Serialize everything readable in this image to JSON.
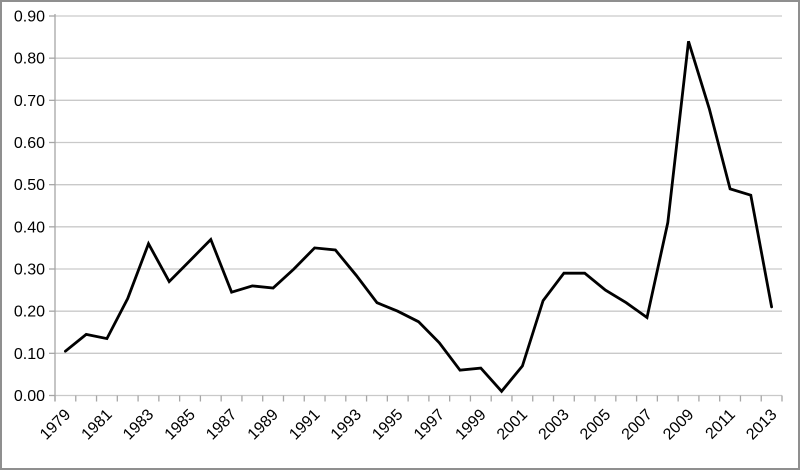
{
  "chart_data": {
    "type": "line",
    "title": "",
    "xlabel": "",
    "ylabel": "",
    "x": [
      1979,
      1980,
      1981,
      1982,
      1983,
      1984,
      1985,
      1986,
      1987,
      1988,
      1989,
      1990,
      1991,
      1992,
      1993,
      1994,
      1995,
      1996,
      1997,
      1998,
      1999,
      2000,
      2001,
      2002,
      2003,
      2004,
      2005,
      2006,
      2007,
      2008,
      2009,
      2010,
      2011,
      2012,
      2013
    ],
    "values": [
      0.105,
      0.145,
      0.135,
      0.23,
      0.36,
      0.27,
      0.32,
      0.37,
      0.245,
      0.26,
      0.255,
      0.3,
      0.35,
      0.345,
      0.285,
      0.22,
      0.2,
      0.175,
      0.125,
      0.06,
      0.065,
      0.01,
      0.07,
      0.225,
      0.29,
      0.29,
      0.25,
      0.22,
      0.185,
      0.41,
      0.84,
      0.68,
      0.49,
      0.475,
      0.21
    ],
    "ylim": [
      0,
      0.9
    ],
    "y_tick_step": 0.1,
    "y_tick_labels": [
      "0.00",
      "0.10",
      "0.20",
      "0.30",
      "0.40",
      "0.50",
      "0.60",
      "0.70",
      "0.80",
      "0.90"
    ],
    "x_tick_labels": [
      "1979",
      "1981",
      "1983",
      "1985",
      "1987",
      "1989",
      "1991",
      "1993",
      "1995",
      "1997",
      "1999",
      "2001",
      "2003",
      "2005",
      "2007",
      "2009",
      "2011",
      "2013"
    ],
    "x_label_every": 2,
    "grid": true,
    "legend": false,
    "colors": {
      "line": "#000000",
      "gridline": "#c9c9c9",
      "axis": "#a6a6a6",
      "tick": "#a6a6a6",
      "text": "#000000",
      "border": "#8f8f8f",
      "background": "#ffffff"
    }
  }
}
